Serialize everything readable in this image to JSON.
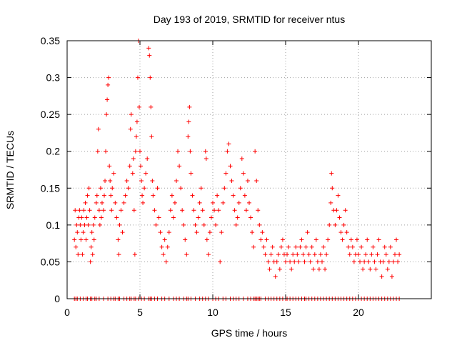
{
  "chart_data": {
    "type": "scatter",
    "title": "Day 193 of 2019, SRMTID for receiver ntus",
    "xlabel": "GPS time / hours",
    "ylabel": "SRMTID / TECUs",
    "xlim": [
      0,
      25
    ],
    "ylim": [
      0,
      0.35
    ],
    "xticks": [
      0,
      5,
      10,
      15,
      20
    ],
    "yticks": [
      0,
      0.05,
      0.1,
      0.15,
      0.2,
      0.25,
      0.3,
      0.35
    ],
    "xtick_labels": [
      "0",
      "5",
      "10",
      "15",
      "20"
    ],
    "ytick_labels": [
      "0",
      "0.05",
      "0.1",
      "0.15",
      "0.2",
      "0.25",
      "0.3",
      "0.35"
    ],
    "grid": true,
    "marker": "+",
    "color": "#ff0000",
    "series": [
      {
        "name": "SRMTID",
        "points": [
          [
            0.5,
            0.08
          ],
          [
            0.55,
            0.12
          ],
          [
            0.6,
            0.07
          ],
          [
            0.65,
            0.1
          ],
          [
            0.7,
            0.09
          ],
          [
            0.75,
            0.06
          ],
          [
            0.8,
            0.11
          ],
          [
            0.85,
            0.12
          ],
          [
            0.9,
            0.1
          ],
          [
            0.95,
            0.08
          ],
          [
            1.0,
            0.11
          ],
          [
            1.05,
            0.06
          ],
          [
            1.1,
            0.09
          ],
          [
            1.15,
            0.12
          ],
          [
            1.2,
            0.1
          ],
          [
            1.25,
            0.13
          ],
          [
            1.3,
            0.08
          ],
          [
            1.35,
            0.11
          ],
          [
            1.4,
            0.14
          ],
          [
            1.45,
            0.1
          ],
          [
            1.5,
            0.15
          ],
          [
            1.55,
            0.12
          ],
          [
            1.6,
            0.05
          ],
          [
            1.65,
            0.07
          ],
          [
            1.7,
            0.09
          ],
          [
            1.75,
            0.06
          ],
          [
            1.8,
            0.1
          ],
          [
            1.85,
            0.08
          ],
          [
            1.9,
            0.11
          ],
          [
            2.0,
            0.13
          ],
          [
            2.05,
            0.14
          ],
          [
            2.1,
            0.2
          ],
          [
            2.15,
            0.23
          ],
          [
            2.2,
            0.12
          ],
          [
            2.25,
            0.1
          ],
          [
            2.3,
            0.15
          ],
          [
            2.35,
            0.11
          ],
          [
            2.4,
            0.13
          ],
          [
            2.5,
            0.12
          ],
          [
            2.55,
            0.14
          ],
          [
            2.6,
            0.16
          ],
          [
            2.65,
            0.2
          ],
          [
            2.7,
            0.25
          ],
          [
            2.75,
            0.27
          ],
          [
            2.8,
            0.29
          ],
          [
            2.85,
            0.3
          ],
          [
            2.9,
            0.18
          ],
          [
            2.95,
            0.16
          ],
          [
            3.0,
            0.14
          ],
          [
            3.05,
            0.12
          ],
          [
            3.1,
            0.15
          ],
          [
            3.2,
            0.17
          ],
          [
            3.3,
            0.13
          ],
          [
            3.4,
            0.11
          ],
          [
            3.5,
            0.08
          ],
          [
            3.55,
            0.06
          ],
          [
            3.6,
            0.1
          ],
          [
            3.7,
            0.12
          ],
          [
            3.8,
            0.09
          ],
          [
            3.9,
            0.13
          ],
          [
            4.0,
            0.14
          ],
          [
            4.1,
            0.16
          ],
          [
            4.2,
            0.15
          ],
          [
            4.3,
            0.18
          ],
          [
            4.35,
            0.23
          ],
          [
            4.4,
            0.25
          ],
          [
            4.5,
            0.17
          ],
          [
            4.55,
            0.19
          ],
          [
            4.6,
            0.12
          ],
          [
            4.65,
            0.06
          ],
          [
            4.7,
            0.2
          ],
          [
            4.75,
            0.22
          ],
          [
            4.8,
            0.24
          ],
          [
            4.85,
            0.3
          ],
          [
            4.9,
            0.35
          ],
          [
            4.95,
            0.26
          ],
          [
            5.0,
            0.2
          ],
          [
            5.05,
            0.18
          ],
          [
            5.1,
            0.16
          ],
          [
            5.15,
            0.14
          ],
          [
            5.2,
            0.13
          ],
          [
            5.3,
            0.15
          ],
          [
            5.4,
            0.17
          ],
          [
            5.5,
            0.19
          ],
          [
            5.6,
            0.34
          ],
          [
            5.65,
            0.33
          ],
          [
            5.7,
            0.3
          ],
          [
            5.75,
            0.26
          ],
          [
            5.8,
            0.22
          ],
          [
            5.85,
            0.16
          ],
          [
            5.9,
            0.14
          ],
          [
            6.0,
            0.12
          ],
          [
            6.1,
            0.1
          ],
          [
            6.2,
            0.15
          ],
          [
            6.3,
            0.11
          ],
          [
            6.4,
            0.09
          ],
          [
            6.5,
            0.07
          ],
          [
            6.6,
            0.06
          ],
          [
            6.7,
            0.08
          ],
          [
            6.8,
            0.05
          ],
          [
            6.9,
            0.07
          ],
          [
            7.0,
            0.09
          ],
          [
            7.1,
            0.12
          ],
          [
            7.2,
            0.14
          ],
          [
            7.3,
            0.11
          ],
          [
            7.4,
            0.13
          ],
          [
            7.5,
            0.16
          ],
          [
            7.6,
            0.2
          ],
          [
            7.7,
            0.18
          ],
          [
            7.8,
            0.15
          ],
          [
            7.9,
            0.12
          ],
          [
            8.0,
            0.1
          ],
          [
            8.1,
            0.08
          ],
          [
            8.2,
            0.06
          ],
          [
            8.3,
            0.22
          ],
          [
            8.35,
            0.24
          ],
          [
            8.4,
            0.26
          ],
          [
            8.45,
            0.2
          ],
          [
            8.5,
            0.17
          ],
          [
            8.6,
            0.14
          ],
          [
            8.7,
            0.12
          ],
          [
            8.8,
            0.1
          ],
          [
            8.9,
            0.09
          ],
          [
            9.0,
            0.11
          ],
          [
            9.1,
            0.13
          ],
          [
            9.2,
            0.15
          ],
          [
            9.3,
            0.12
          ],
          [
            9.4,
            0.1
          ],
          [
            9.5,
            0.2
          ],
          [
            9.55,
            0.19
          ],
          [
            9.6,
            0.08
          ],
          [
            9.7,
            0.06
          ],
          [
            9.8,
            0.09
          ],
          [
            9.9,
            0.11
          ],
          [
            10.0,
            0.13
          ],
          [
            10.1,
            0.12
          ],
          [
            10.2,
            0.1
          ],
          [
            10.3,
            0.14
          ],
          [
            10.4,
            0.12
          ],
          [
            10.5,
            0.05
          ],
          [
            10.6,
            0.09
          ],
          [
            10.7,
            0.13
          ],
          [
            10.8,
            0.15
          ],
          [
            10.9,
            0.17
          ],
          [
            11.0,
            0.2
          ],
          [
            11.1,
            0.21
          ],
          [
            11.2,
            0.18
          ],
          [
            11.3,
            0.16
          ],
          [
            11.4,
            0.14
          ],
          [
            11.5,
            0.12
          ],
          [
            11.6,
            0.1
          ],
          [
            11.7,
            0.11
          ],
          [
            11.8,
            0.13
          ],
          [
            11.9,
            0.15
          ],
          [
            12.0,
            0.19
          ],
          [
            12.1,
            0.17
          ],
          [
            12.2,
            0.14
          ],
          [
            12.3,
            0.12
          ],
          [
            12.4,
            0.16
          ],
          [
            12.5,
            0.13
          ],
          [
            12.6,
            0.11
          ],
          [
            12.7,
            0.09
          ],
          [
            12.8,
            0.07
          ],
          [
            12.9,
            0.2
          ],
          [
            13.0,
            0.16
          ],
          [
            13.1,
            0.12
          ],
          [
            13.2,
            0.1
          ],
          [
            13.3,
            0.08
          ],
          [
            13.4,
            0.09
          ],
          [
            13.5,
            0.07
          ],
          [
            13.6,
            0.06
          ],
          [
            13.7,
            0.08
          ],
          [
            13.8,
            0.05
          ],
          [
            13.9,
            0.04
          ],
          [
            14.0,
            0.06
          ],
          [
            14.1,
            0.07
          ],
          [
            14.2,
            0.05
          ],
          [
            14.3,
            0.03
          ],
          [
            14.4,
            0.05
          ],
          [
            14.5,
            0.06
          ],
          [
            14.6,
            0.04
          ],
          [
            14.7,
            0.07
          ],
          [
            14.8,
            0.08
          ],
          [
            14.9,
            0.06
          ],
          [
            15.0,
            0.05
          ],
          [
            15.1,
            0.06
          ],
          [
            15.2,
            0.07
          ],
          [
            15.3,
            0.05
          ],
          [
            15.4,
            0.04
          ],
          [
            15.5,
            0.06
          ],
          [
            15.6,
            0.05
          ],
          [
            15.7,
            0.07
          ],
          [
            15.8,
            0.06
          ],
          [
            15.9,
            0.05
          ],
          [
            16.0,
            0.07
          ],
          [
            16.1,
            0.08
          ],
          [
            16.2,
            0.06
          ],
          [
            16.3,
            0.05
          ],
          [
            16.4,
            0.07
          ],
          [
            16.5,
            0.09
          ],
          [
            16.6,
            0.06
          ],
          [
            16.7,
            0.05
          ],
          [
            16.8,
            0.07
          ],
          [
            16.9,
            0.04
          ],
          [
            17.0,
            0.06
          ],
          [
            17.1,
            0.08
          ],
          [
            17.2,
            0.05
          ],
          [
            17.3,
            0.04
          ],
          [
            17.4,
            0.06
          ],
          [
            17.5,
            0.05
          ],
          [
            17.6,
            0.07
          ],
          [
            17.7,
            0.04
          ],
          [
            17.8,
            0.06
          ],
          [
            17.9,
            0.08
          ],
          [
            18.0,
            0.1
          ],
          [
            18.1,
            0.13
          ],
          [
            18.15,
            0.17
          ],
          [
            18.2,
            0.15
          ],
          [
            18.3,
            0.12
          ],
          [
            18.4,
            0.1
          ],
          [
            18.5,
            0.12
          ],
          [
            18.6,
            0.14
          ],
          [
            18.7,
            0.11
          ],
          [
            18.8,
            0.09
          ],
          [
            18.9,
            0.08
          ],
          [
            19.0,
            0.1
          ],
          [
            19.1,
            0.12
          ],
          [
            19.2,
            0.09
          ],
          [
            19.3,
            0.07
          ],
          [
            19.4,
            0.06
          ],
          [
            19.5,
            0.08
          ],
          [
            19.6,
            0.07
          ],
          [
            19.7,
            0.05
          ],
          [
            19.8,
            0.06
          ],
          [
            19.9,
            0.08
          ],
          [
            20.0,
            0.06
          ],
          [
            20.1,
            0.05
          ],
          [
            20.2,
            0.07
          ],
          [
            20.3,
            0.04
          ],
          [
            20.4,
            0.05
          ],
          [
            20.5,
            0.06
          ],
          [
            20.6,
            0.08
          ],
          [
            20.7,
            0.05
          ],
          [
            20.8,
            0.04
          ],
          [
            20.9,
            0.06
          ],
          [
            21.0,
            0.07
          ],
          [
            21.1,
            0.05
          ],
          [
            21.2,
            0.04
          ],
          [
            21.3,
            0.06
          ],
          [
            21.4,
            0.08
          ],
          [
            21.5,
            0.05
          ],
          [
            21.6,
            0.03
          ],
          [
            21.7,
            0.05
          ],
          [
            21.8,
            0.07
          ],
          [
            21.9,
            0.06
          ],
          [
            22.0,
            0.04
          ],
          [
            22.1,
            0.05
          ],
          [
            22.2,
            0.07
          ],
          [
            22.3,
            0.03
          ],
          [
            22.4,
            0.05
          ],
          [
            22.5,
            0.06
          ],
          [
            22.6,
            0.08
          ],
          [
            22.7,
            0.05
          ],
          [
            22.8,
            0.06
          ]
        ]
      }
    ],
    "baseline_points_x": [
      0.5,
      0.6,
      0.7,
      0.9,
      1.1,
      1.3,
      1.4,
      1.6,
      1.7,
      1.9,
      2.0,
      2.2,
      2.5,
      2.8,
      3.0,
      3.2,
      3.3,
      3.5,
      3.6,
      3.9,
      4.1,
      4.3,
      4.4,
      4.6,
      4.7,
      4.9,
      5.1,
      5.3,
      5.6,
      5.7,
      5.8,
      6.0,
      6.2,
      6.5,
      6.7,
      7.0,
      7.3,
      7.5,
      7.7,
      8.0,
      8.2,
      8.3,
      8.5,
      8.8,
      9.1,
      9.3,
      9.5,
      9.7,
      10.0,
      10.2,
      10.4,
      10.7,
      10.9,
      11.2,
      11.4,
      11.6,
      11.8,
      12.1,
      12.4,
      12.6,
      12.8,
      12.9,
      13.0,
      13.1,
      13.2,
      13.3,
      13.6,
      13.8,
      14.0,
      14.2,
      14.4,
      14.6,
      14.8,
      15.0,
      15.1,
      15.3,
      15.5,
      15.7,
      15.9,
      16.1,
      16.3,
      16.4,
      16.6,
      16.8,
      17.0,
      17.2,
      17.4,
      17.6,
      17.8,
      18.0,
      18.2,
      18.4,
      18.6,
      18.8,
      19.0,
      19.2,
      19.4,
      19.6,
      19.8,
      20.0,
      20.2,
      20.4,
      20.6,
      20.8,
      21.0,
      21.2,
      21.4,
      21.6,
      21.8,
      22.0,
      22.2,
      22.4,
      22.6,
      22.8
    ]
  }
}
